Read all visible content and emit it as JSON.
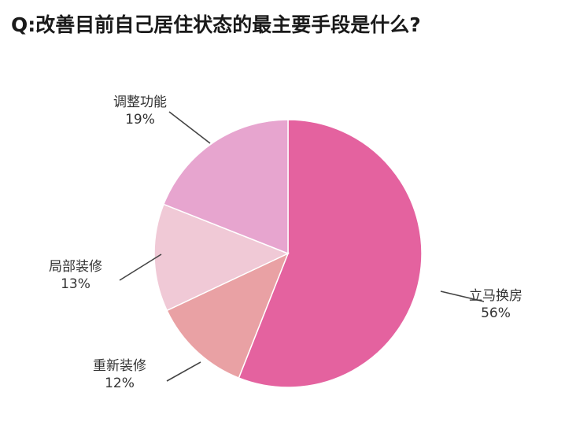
{
  "title": "Q:改善目前自己居住状态的最主要手段是什么?",
  "chart_data": {
    "type": "pie",
    "title": "Q:改善目前自己居住状态的最主要手段是什么?",
    "slices": [
      {
        "label": "立马换房",
        "value": 56,
        "value_label": "56%",
        "color": "#e4629f"
      },
      {
        "label": "重新装修",
        "value": 12,
        "value_label": "12%",
        "color": "#e9a1a4"
      },
      {
        "label": "局部装修",
        "value": 13,
        "value_label": "13%",
        "color": "#f0c9d6"
      },
      {
        "label": "调整功能",
        "value": 19,
        "value_label": "19%",
        "color": "#e7a5cf"
      }
    ],
    "start": "12 o'clock",
    "direction": "clockwise",
    "legend": "none"
  }
}
